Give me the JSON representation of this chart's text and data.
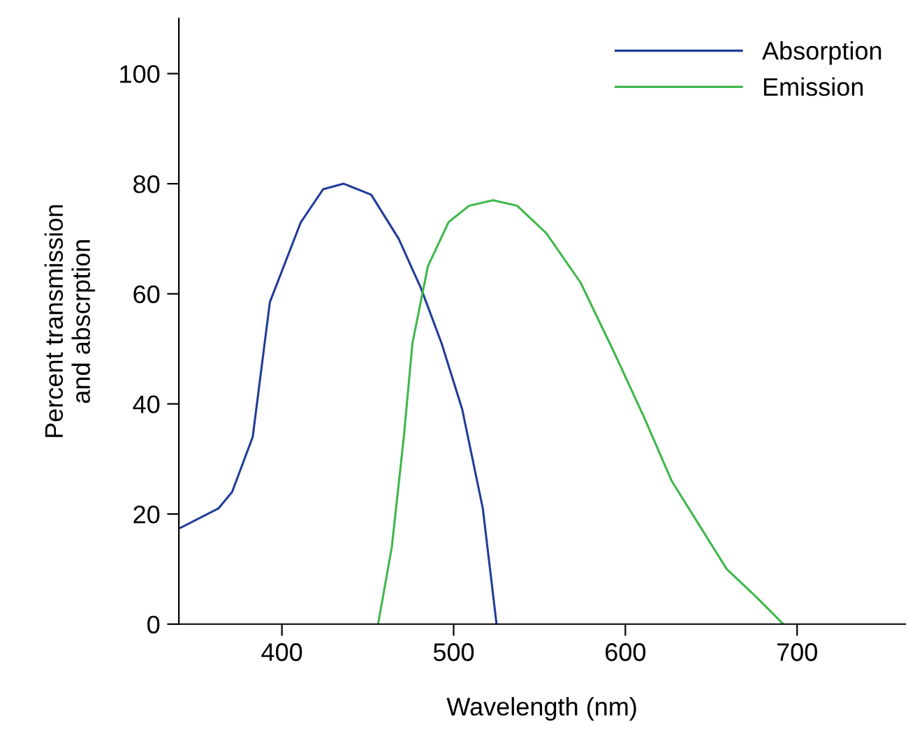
{
  "chart_data": {
    "type": "line",
    "xlabel": "Wavelength (nm)",
    "ylabel": "Percent transmission\nand abscrption",
    "xlim": [
      340,
      763
    ],
    "ylim": [
      0,
      110
    ],
    "xticks": [
      400,
      500,
      600,
      700
    ],
    "yticks": [
      0,
      20,
      40,
      60,
      80,
      100
    ],
    "grid": false,
    "legend": "top right",
    "marker": "none",
    "line_style": "solid",
    "series": [
      {
        "name": "Absorption",
        "color": "#1f3c99",
        "x": [
          341,
          363,
          371,
          383,
          393,
          411,
          424,
          436,
          452,
          468,
          481,
          493,
          505,
          517,
          525
        ],
        "values": [
          17.5,
          21,
          24,
          34,
          58.5,
          73,
          79,
          80,
          78,
          70,
          61,
          51,
          39,
          21,
          0
        ]
      },
      {
        "name": "Emission",
        "color": "#3db84a",
        "x": [
          456,
          464,
          471,
          476,
          485,
          497,
          509,
          523,
          537,
          554,
          574,
          594,
          611,
          627,
          643,
          659,
          676,
          692
        ],
        "values": [
          0,
          14,
          34,
          51,
          65,
          73,
          76,
          77,
          76,
          71,
          62,
          49,
          37.5,
          26,
          18,
          10,
          5,
          0
        ]
      }
    ]
  }
}
